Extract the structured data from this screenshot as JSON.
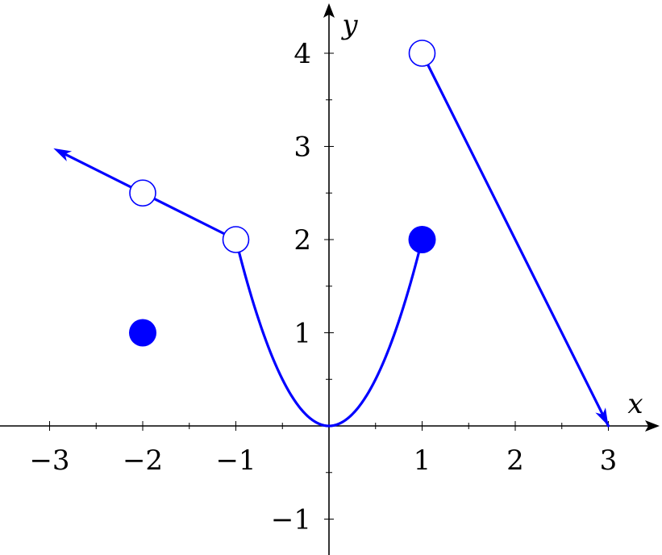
{
  "chart_data": {
    "type": "line",
    "title": "",
    "xlabel": "x",
    "ylabel": "y",
    "xlim": [
      -3.5,
      3.5
    ],
    "ylim": [
      -1.3,
      4.5
    ],
    "x_ticks": [
      -3,
      -2,
      -1,
      1,
      2,
      3
    ],
    "x_tick_labels": [
      "−3",
      "−2",
      "−1",
      "1",
      "2",
      "3"
    ],
    "y_ticks": [
      -1,
      1,
      2,
      3,
      4
    ],
    "y_tick_labels": [
      "−1",
      "1",
      "2",
      "3",
      "4"
    ],
    "minor_tick_step": 0.5,
    "grid": false,
    "color": "#0000ff",
    "series": [
      {
        "kind": "segment",
        "points": [
          [
            -2.85,
            2.925
          ],
          [
            -1,
            2
          ]
        ],
        "arrow_at_start": true
      },
      {
        "kind": "parabola",
        "coefficient": 2,
        "domain": [
          -1,
          1
        ]
      },
      {
        "kind": "segment",
        "points": [
          [
            1,
            4
          ],
          [
            3,
            0
          ]
        ],
        "arrow_at_end": true
      }
    ],
    "open_points": [
      [
        -2,
        2.5
      ],
      [
        -1,
        2
      ],
      [
        1,
        4
      ]
    ],
    "closed_points": [
      [
        -2,
        1
      ],
      [
        1,
        2
      ]
    ]
  }
}
